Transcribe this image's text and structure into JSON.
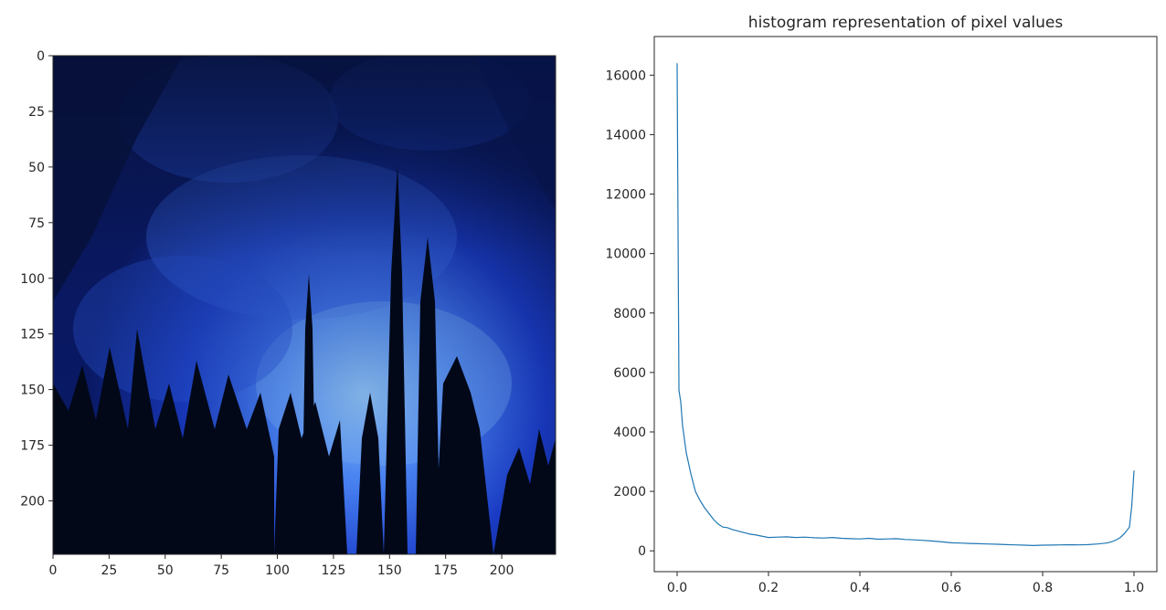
{
  "chart_data": [
    {
      "type": "image",
      "title": "",
      "xlim": [
        0,
        224
      ],
      "ylim": [
        224,
        0
      ],
      "xticks": [
        0,
        25,
        50,
        75,
        100,
        125,
        150,
        175,
        200
      ],
      "yticks": [
        0,
        25,
        50,
        75,
        100,
        125,
        150,
        175,
        200
      ],
      "colors": {
        "deep": "#06113a",
        "mid": "#1a3cc8",
        "bright": "#4f8cff",
        "glow": "#9fd4ff",
        "tree": "#020818"
      }
    },
    {
      "type": "line",
      "title": "histogram representation of pixel values",
      "xlabel": "",
      "ylabel": "",
      "xlim": [
        -0.05,
        1.05
      ],
      "ylim": [
        -700,
        17300
      ],
      "xticks": [
        0.0,
        0.2,
        0.4,
        0.6,
        0.8,
        1.0
      ],
      "xtick_labels": [
        "0.0",
        "0.2",
        "0.4",
        "0.6",
        "0.8",
        "1.0"
      ],
      "yticks": [
        0,
        2000,
        4000,
        6000,
        8000,
        10000,
        12000,
        14000,
        16000
      ],
      "ytick_labels": [
        "0",
        "2000",
        "4000",
        "6000",
        "8000",
        "10000",
        "12000",
        "14000",
        "16000"
      ],
      "grid": false,
      "line_color": "#1f77b4",
      "series": [
        {
          "x": [
            0.0,
            0.004,
            0.008,
            0.012,
            0.02,
            0.03,
            0.04,
            0.05,
            0.06,
            0.07,
            0.08,
            0.09,
            0.1,
            0.11,
            0.12,
            0.13,
            0.14,
            0.15,
            0.16,
            0.17,
            0.18,
            0.19,
            0.2,
            0.22,
            0.24,
            0.26,
            0.28,
            0.3,
            0.32,
            0.34,
            0.36,
            0.38,
            0.4,
            0.42,
            0.44,
            0.46,
            0.48,
            0.5,
            0.52,
            0.54,
            0.56,
            0.58,
            0.6,
            0.62,
            0.64,
            0.66,
            0.68,
            0.7,
            0.72,
            0.74,
            0.76,
            0.78,
            0.8,
            0.82,
            0.84,
            0.86,
            0.88,
            0.9,
            0.92,
            0.94,
            0.95,
            0.96,
            0.97,
            0.98,
            0.99,
            0.995,
            1.0
          ],
          "y": [
            16400,
            5400,
            5000,
            4200,
            3300,
            2600,
            2000,
            1700,
            1450,
            1250,
            1050,
            900,
            800,
            780,
            720,
            680,
            640,
            600,
            560,
            540,
            510,
            480,
            450,
            460,
            470,
            450,
            460,
            440,
            430,
            450,
            420,
            410,
            400,
            420,
            390,
            400,
            410,
            380,
            370,
            350,
            330,
            300,
            270,
            260,
            250,
            240,
            230,
            220,
            210,
            200,
            190,
            180,
            190,
            195,
            200,
            205,
            200,
            210,
            230,
            260,
            300,
            360,
            450,
            600,
            800,
            1500,
            2700
          ]
        }
      ]
    }
  ]
}
